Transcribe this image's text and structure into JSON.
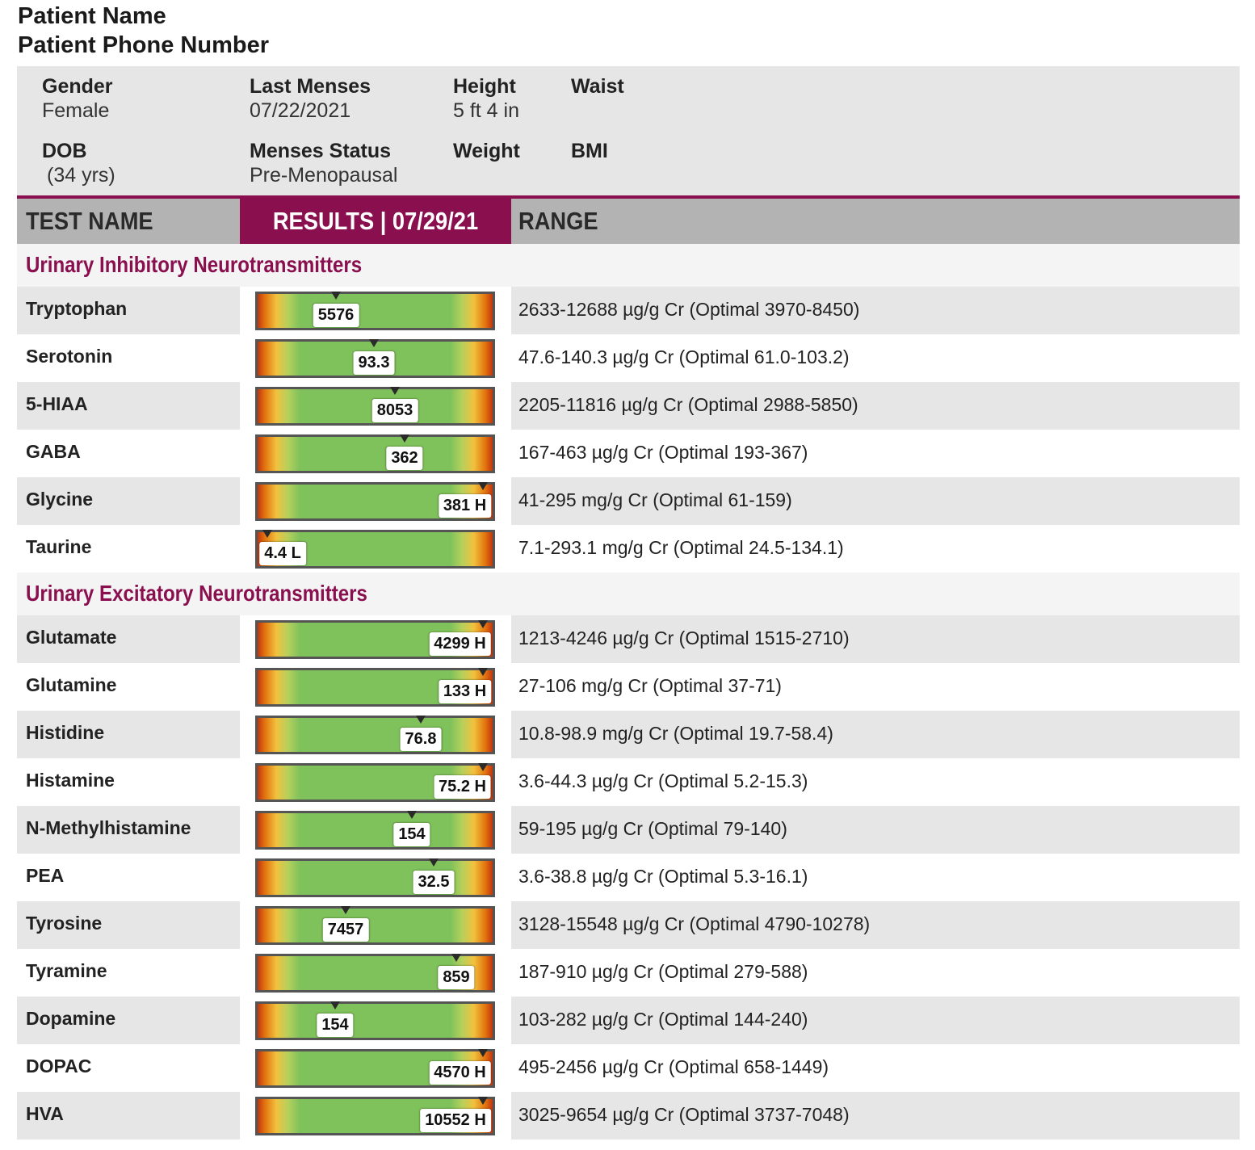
{
  "patient": {
    "name": "Patient Name",
    "phone": "Patient Phone Number"
  },
  "demographics": {
    "gender_label": "Gender",
    "gender_value": "Female",
    "dob_label": "DOB",
    "dob_value": "(34 yrs)",
    "last_menses_label": "Last Menses",
    "last_menses_value": "07/22/2021",
    "menses_status_label": "Menses Status",
    "menses_status_value": "Pre-Menopausal",
    "height_label": "Height",
    "height_value": "5 ft 4 in",
    "weight_label": "Weight",
    "waist_label": "Waist",
    "bmi_label": "BMI"
  },
  "table_header": {
    "test_name": "TEST NAME",
    "results": "RESULTS | 07/29/21",
    "range": "RANGE"
  },
  "colors": {
    "accent": "#8a0f4f",
    "bar_green": "#7fc15a",
    "bar_red": "#c03510",
    "bar_yellow": "#f1c23e",
    "shade": "#e6e6e6"
  },
  "sections": [
    {
      "title": "Urinary Inhibitory Neurotransmitters",
      "tests": [
        {
          "name": "Tryptophan",
          "result": "5576",
          "flag": "",
          "marker_position": 0.335,
          "range": "2633-12688 µg/g Cr (Optimal 3970-8450)"
        },
        {
          "name": "Serotonin",
          "result": "93.3",
          "flag": "",
          "marker_position": 0.495,
          "range": "47.6-140.3 µg/g Cr (Optimal 61.0-103.2)"
        },
        {
          "name": "5-HIAA",
          "result": "8053",
          "flag": "",
          "marker_position": 0.585,
          "range": "2205-11816 µg/g Cr (Optimal 2988-5850)"
        },
        {
          "name": "GABA",
          "result": "362",
          "flag": "",
          "marker_position": 0.625,
          "range": "167-463 µg/g Cr (Optimal 193-367)"
        },
        {
          "name": "Glycine",
          "result": "381 H",
          "flag": "H",
          "marker_position": 0.96,
          "range": "41-295 mg/g Cr (Optimal 61-159)"
        },
        {
          "name": "Taurine",
          "result": "4.4 L",
          "flag": "L",
          "marker_position": 0.04,
          "range": "7.1-293.1 mg/g Cr (Optimal 24.5-134.1)"
        }
      ]
    },
    {
      "title": "Urinary Excitatory Neurotransmitters",
      "tests": [
        {
          "name": "Glutamate",
          "result": "4299 H",
          "flag": "H",
          "marker_position": 0.96,
          "range": "1213-4246 µg/g Cr (Optimal 1515-2710)"
        },
        {
          "name": "Glutamine",
          "result": "133 H",
          "flag": "H",
          "marker_position": 0.96,
          "range": "27-106 mg/g Cr (Optimal 37-71)"
        },
        {
          "name": "Histidine",
          "result": "76.8",
          "flag": "",
          "marker_position": 0.695,
          "range": "10.8-98.9 mg/g Cr (Optimal 19.7-58.4)"
        },
        {
          "name": "Histamine",
          "result": "75.2 H",
          "flag": "H",
          "marker_position": 0.96,
          "range": "3.6-44.3 µg/g Cr (Optimal 5.2-15.3)"
        },
        {
          "name": "N-Methylhistamine",
          "result": "154",
          "flag": "",
          "marker_position": 0.655,
          "range": "59-195 µg/g Cr (Optimal 79-140)"
        },
        {
          "name": "PEA",
          "result": "32.5",
          "flag": "",
          "marker_position": 0.75,
          "range": "3.6-38.8 µg/g Cr (Optimal 5.3-16.1)"
        },
        {
          "name": "Tyrosine",
          "result": "7457",
          "flag": "",
          "marker_position": 0.375,
          "range": "3128-15548 µg/g Cr (Optimal 4790-10278)"
        },
        {
          "name": "Tyramine",
          "result": "859",
          "flag": "",
          "marker_position": 0.845,
          "range": "187-910 µg/g Cr (Optimal 279-588)"
        },
        {
          "name": "Dopamine",
          "result": "154",
          "flag": "",
          "marker_position": 0.33,
          "range": "103-282 µg/g Cr (Optimal 144-240)"
        },
        {
          "name": "DOPAC",
          "result": "4570 H",
          "flag": "H",
          "marker_position": 0.96,
          "range": "495-2456 µg/g Cr (Optimal 658-1449)"
        },
        {
          "name": "HVA",
          "result": "10552 H",
          "flag": "H",
          "marker_position": 0.96,
          "range": "3025-9654 µg/g Cr (Optimal 3737-7048)"
        }
      ]
    }
  ]
}
